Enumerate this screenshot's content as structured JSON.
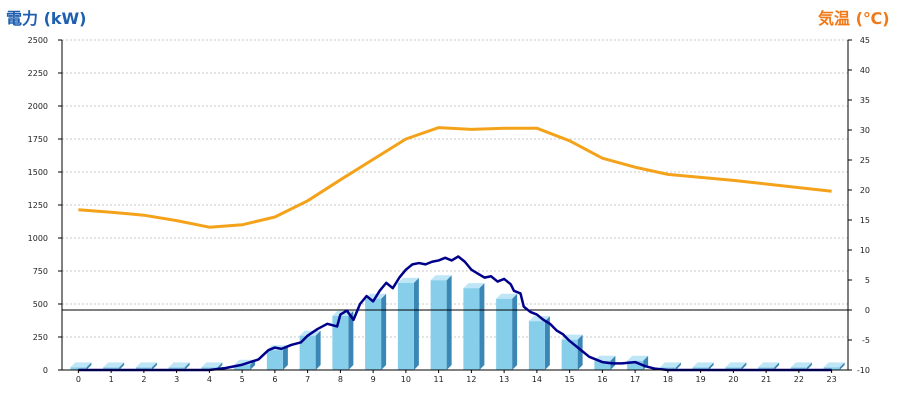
{
  "chart_data": {
    "type": "bar+line",
    "title_left": "電力 (kW)",
    "title_right": "気温 (℃)",
    "x_categories": [
      "0",
      "1",
      "2",
      "3",
      "4",
      "5",
      "6",
      "7",
      "8",
      "9",
      "10",
      "11",
      "12",
      "13",
      "14",
      "15",
      "16",
      "17",
      "18",
      "19",
      "20",
      "21",
      "22",
      "23"
    ],
    "y_left": {
      "min": 0,
      "max": 2500,
      "ticks": [
        "0",
        "250",
        "500",
        "750",
        "1000",
        "1250",
        "1500",
        "1750",
        "2000",
        "2250",
        "2500"
      ]
    },
    "y_right": {
      "min": -10,
      "max": 45,
      "ticks": [
        "-10",
        "-5",
        "0",
        "5",
        "10",
        "15",
        "20",
        "25",
        "30",
        "35",
        "40",
        "45"
      ]
    },
    "grid": true,
    "reference_line_right_axis": 0,
    "series": [
      {
        "kind": "bar",
        "axis": "left",
        "values": [
          20,
          20,
          20,
          20,
          20,
          40,
          150,
          260,
          410,
          540,
          660,
          680,
          620,
          540,
          370,
          230,
          70,
          70,
          20,
          20,
          20,
          20,
          20,
          20
        ]
      },
      {
        "kind": "line",
        "axis": "right",
        "color": "#f5a21b",
        "points": [
          [
            0,
            16.7
          ],
          [
            1,
            16.3
          ],
          [
            2,
            15.8
          ],
          [
            3,
            14.9
          ],
          [
            4,
            13.8
          ],
          [
            5,
            14.2
          ],
          [
            6,
            15.5
          ],
          [
            7,
            18.2
          ],
          [
            8,
            21.7
          ],
          [
            9,
            25.1
          ],
          [
            10,
            28.5
          ],
          [
            11,
            30.4
          ],
          [
            12,
            30.1
          ],
          [
            13,
            30.3
          ],
          [
            14,
            30.3
          ],
          [
            15,
            28.2
          ],
          [
            16,
            25.3
          ],
          [
            17,
            23.8
          ],
          [
            18,
            22.6
          ],
          [
            19,
            22.1
          ],
          [
            20,
            21.6
          ],
          [
            21,
            21.0
          ],
          [
            22,
            20.4
          ],
          [
            23,
            19.8
          ]
        ]
      },
      {
        "kind": "line",
        "axis": "left",
        "color": "#00008b",
        "points": [
          [
            0,
            0
          ],
          [
            1,
            0
          ],
          [
            2,
            0
          ],
          [
            3,
            0
          ],
          [
            4,
            0
          ],
          [
            4.5,
            15
          ],
          [
            5,
            40
          ],
          [
            5.5,
            80
          ],
          [
            5.8,
            150
          ],
          [
            6,
            170
          ],
          [
            6.2,
            160
          ],
          [
            6.5,
            190
          ],
          [
            6.8,
            210
          ],
          [
            7,
            260
          ],
          [
            7.3,
            310
          ],
          [
            7.6,
            350
          ],
          [
            7.9,
            330
          ],
          [
            8,
            420
          ],
          [
            8.2,
            450
          ],
          [
            8.4,
            380
          ],
          [
            8.6,
            500
          ],
          [
            8.8,
            560
          ],
          [
            9,
            520
          ],
          [
            9.2,
            600
          ],
          [
            9.4,
            660
          ],
          [
            9.6,
            620
          ],
          [
            9.8,
            700
          ],
          [
            10,
            760
          ],
          [
            10.2,
            800
          ],
          [
            10.4,
            810
          ],
          [
            10.6,
            800
          ],
          [
            10.8,
            820
          ],
          [
            11,
            830
          ],
          [
            11.2,
            850
          ],
          [
            11.4,
            830
          ],
          [
            11.6,
            860
          ],
          [
            11.8,
            820
          ],
          [
            12,
            760
          ],
          [
            12.2,
            730
          ],
          [
            12.4,
            700
          ],
          [
            12.6,
            710
          ],
          [
            12.8,
            670
          ],
          [
            13,
            690
          ],
          [
            13.2,
            650
          ],
          [
            13.3,
            600
          ],
          [
            13.5,
            580
          ],
          [
            13.6,
            480
          ],
          [
            13.8,
            440
          ],
          [
            14,
            420
          ],
          [
            14.2,
            380
          ],
          [
            14.4,
            350
          ],
          [
            14.6,
            300
          ],
          [
            14.8,
            270
          ],
          [
            15,
            220
          ],
          [
            15.3,
            160
          ],
          [
            15.6,
            100
          ],
          [
            16,
            60
          ],
          [
            16.3,
            50
          ],
          [
            16.6,
            50
          ],
          [
            17,
            60
          ],
          [
            17.3,
            30
          ],
          [
            17.6,
            10
          ],
          [
            18,
            0
          ],
          [
            19,
            0
          ],
          [
            20,
            0
          ],
          [
            21,
            0
          ],
          [
            22,
            0
          ],
          [
            23,
            0
          ]
        ]
      }
    ]
  }
}
